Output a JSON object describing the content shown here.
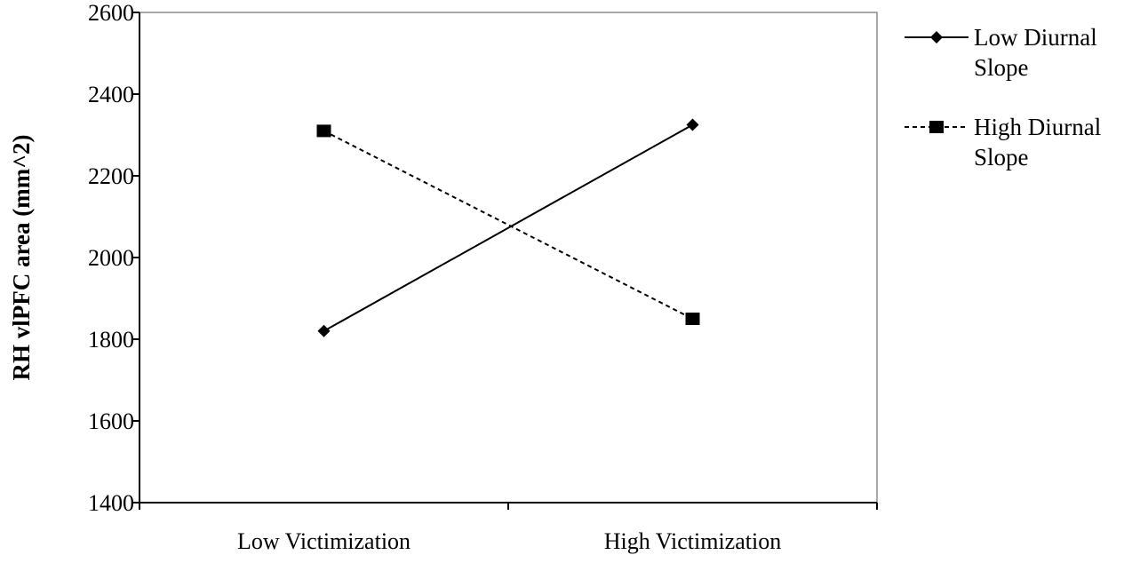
{
  "chart_data": {
    "type": "line",
    "title": "",
    "xlabel": "",
    "ylabel": "RH vlPFC area (mm^2)",
    "categories": [
      "Low Victimization",
      "High Victimization"
    ],
    "ylim": [
      1400,
      2600
    ],
    "yticks": [
      "1400",
      "1600",
      "1800",
      "2000",
      "2200",
      "2400",
      "2600"
    ],
    "grid": false,
    "legend_position": "right",
    "series": [
      {
        "name": "Low Diurnal Slope",
        "name_lines": [
          "Low Diurnal",
          "Slope"
        ],
        "values": [
          1820,
          2325
        ],
        "marker": "diamond",
        "line_style": "solid",
        "color": "#000000"
      },
      {
        "name": "High Diurnal Slope",
        "name_lines": [
          "High Diurnal",
          "Slope"
        ],
        "values": [
          2310,
          1850
        ],
        "marker": "square",
        "line_style": "dashed",
        "color": "#000000"
      }
    ]
  }
}
